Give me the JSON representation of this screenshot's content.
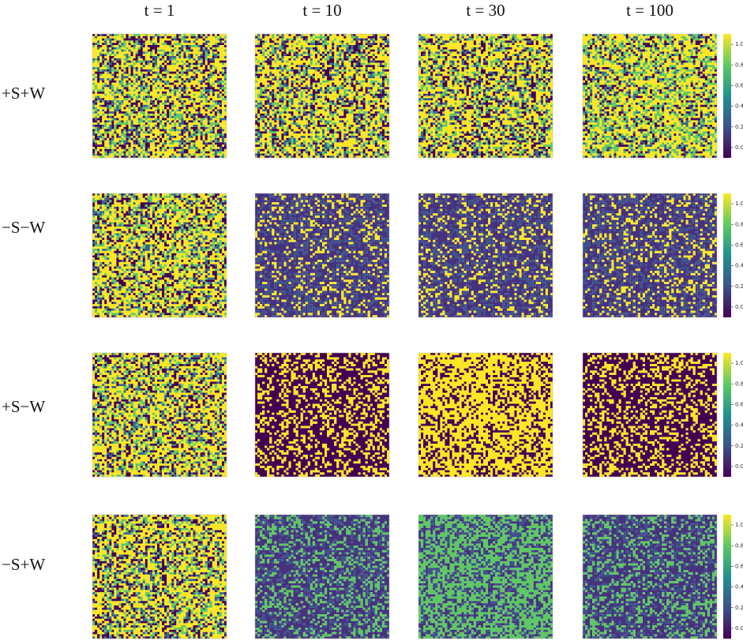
{
  "column_titles": [
    "t = 1",
    "t = 10",
    "t = 30",
    "t = 100"
  ],
  "row_labels": [
    "+S+W",
    "−S−W",
    "+S−W",
    "−S+W"
  ],
  "panels": [
    [
      {
        "colors": [
          "#fde725",
          "#440154",
          "#5ec962",
          "#31688e"
        ]
      },
      {
        "colors": [
          "#fde725",
          "#440154",
          "#5ec962",
          "#31688e"
        ]
      },
      {
        "colors": [
          "#fde725",
          "#440154",
          "#5ec962",
          "#31688e"
        ]
      },
      {
        "colors": [
          "#fde725",
          "#5ec962",
          "#440154",
          "#31688e"
        ]
      }
    ],
    [
      {
        "colors": [
          "#fde725",
          "#440154",
          "#5ec962",
          "#31688e"
        ]
      },
      {
        "colors": [
          "#46327e",
          "#3b528b",
          "#fde725"
        ]
      },
      {
        "colors": [
          "#46327e",
          "#3b528b",
          "#fde725"
        ]
      },
      {
        "colors": [
          "#46327e",
          "#3b528b",
          "#fde725"
        ]
      }
    ],
    [
      {
        "colors": [
          "#fde725",
          "#440154",
          "#5ec962",
          "#31688e"
        ]
      },
      {
        "colors": [
          "#440154",
          "#fde725"
        ]
      },
      {
        "colors": [
          "#fde725",
          "#440154"
        ]
      },
      {
        "colors": [
          "#440154",
          "#fde725"
        ]
      }
    ],
    [
      {
        "colors": [
          "#fde725",
          "#440154",
          "#5ec962",
          "#31688e"
        ]
      },
      {
        "colors": [
          "#46327e",
          "#5ec962",
          "#3b528b"
        ]
      },
      {
        "colors": [
          "#5ec962",
          "#46327e",
          "#3b528b"
        ]
      },
      {
        "colors": [
          "#46327e",
          "#5ec962",
          "#3b528b"
        ]
      }
    ]
  ],
  "colorbar": {
    "colormap": [
      "#440154",
      "#3b528b",
      "#21918c",
      "#5ec962",
      "#fde725"
    ],
    "ylim": [
      -0.1,
      1.1
    ],
    "ticks": [
      {
        "value": 0,
        "label": "0.0"
      },
      {
        "value": 0.2,
        "label": "0.2"
      },
      {
        "value": 0.4,
        "label": "0.4"
      },
      {
        "value": 0.6,
        "label": "0.6"
      },
      {
        "value": 0.8,
        "label": "0.8"
      },
      {
        "value": 1,
        "label": "1.0"
      }
    ]
  }
}
